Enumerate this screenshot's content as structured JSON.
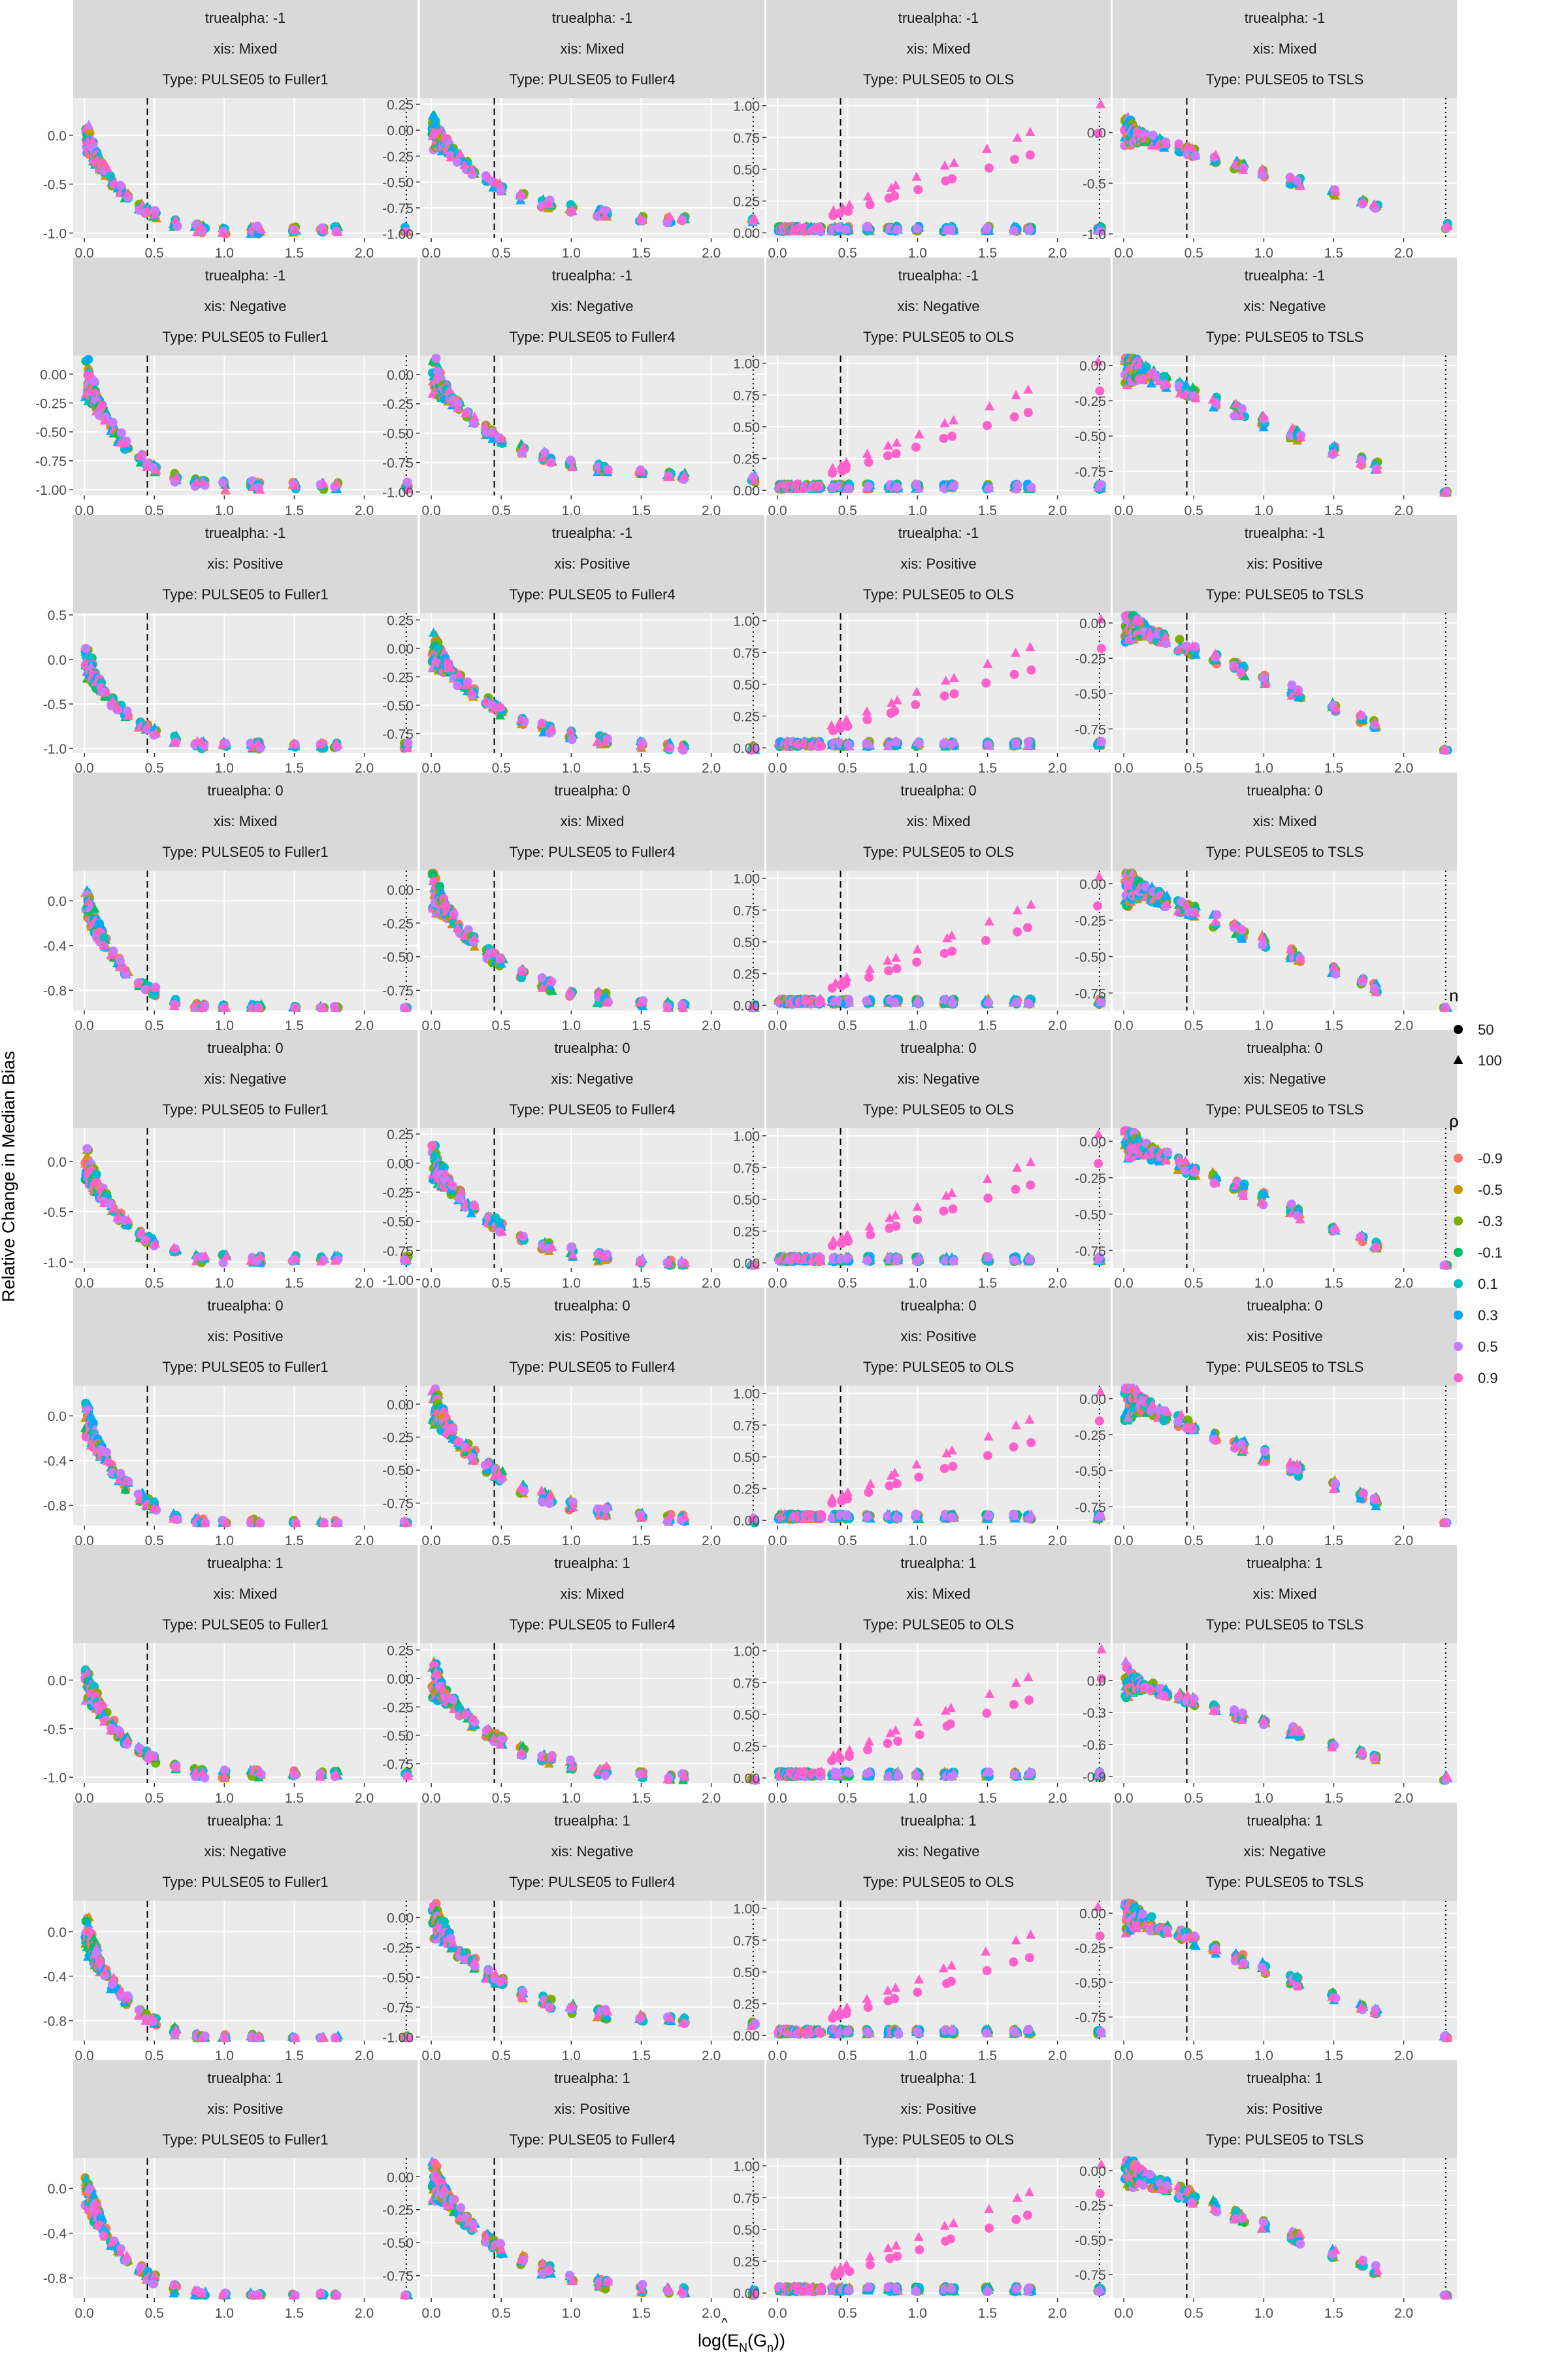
{
  "chart_data": {
    "type": "scatter",
    "layout": "facet-grid",
    "ylabel": "Relative Change in Median Bias",
    "xlabel_parts": {
      "base": "log(",
      "E": "E",
      "hat": "^",
      "sub_N": "N",
      "mid": "(G",
      "sub_n": "n",
      "end": "))"
    },
    "x_ticks": [
      0.0,
      0.5,
      1.0,
      1.5,
      2.0
    ],
    "x_tick_labels": [
      "0.0",
      "0.5",
      "1.0",
      "1.5",
      "2.0"
    ],
    "xlim": [
      -0.08,
      2.38
    ],
    "vline_dashed_x": 0.45,
    "vline_dotted_x": 2.3,
    "grid": true,
    "facet_rows": [
      {
        "truealpha": "truealpha: -1",
        "xis": "xis: Mixed"
      },
      {
        "truealpha": "truealpha: -1",
        "xis": "xis: Negative"
      },
      {
        "truealpha": "truealpha: -1",
        "xis": "xis: Positive"
      },
      {
        "truealpha": "truealpha: 0",
        "xis": "xis: Mixed"
      },
      {
        "truealpha": "truealpha: 0",
        "xis": "xis: Negative"
      },
      {
        "truealpha": "truealpha: 0",
        "xis": "xis: Positive"
      },
      {
        "truealpha": "truealpha: 1",
        "xis": "xis: Mixed"
      },
      {
        "truealpha": "truealpha: 1",
        "xis": "xis: Negative"
      },
      {
        "truealpha": "truealpha: 1",
        "xis": "xis: Positive"
      }
    ],
    "facet_cols": [
      {
        "type": "Type: PULSE05 to Fuller1",
        "kind": "fuller1"
      },
      {
        "type": "Type: PULSE05 to Fuller4",
        "kind": "fuller4"
      },
      {
        "type": "Type: PULSE05 to OLS",
        "kind": "ols"
      },
      {
        "type": "Type: PULSE05 to TSLS",
        "kind": "tsls"
      }
    ],
    "y_ticks": [
      [
        [
          0.0,
          -0.5,
          -1.0
        ],
        [
          0.25,
          0.0,
          -0.25,
          -0.5,
          -0.75,
          -1.0
        ],
        [
          1.0,
          0.75,
          0.5,
          0.25,
          0.0
        ],
        [
          0.0,
          -0.5,
          -1.0
        ]
      ],
      [
        [
          0.0,
          -0.25,
          -0.5,
          -0.75,
          -1.0
        ],
        [
          0.0,
          -0.25,
          -0.5,
          -0.75,
          -1.0
        ],
        [
          1.0,
          0.75,
          0.5,
          0.25,
          0.0
        ],
        [
          0.0,
          -0.25,
          -0.5,
          -0.75
        ]
      ],
      [
        [
          0.5,
          0.0,
          -0.5,
          -1.0
        ],
        [
          0.25,
          0.0,
          -0.25,
          -0.5,
          -0.75
        ],
        [
          1.0,
          0.75,
          0.5,
          0.25,
          0.0
        ],
        [
          0.0,
          -0.25,
          -0.5,
          -0.75
        ]
      ],
      [
        [
          0.0,
          -0.4,
          -0.8
        ],
        [
          0.0,
          -0.25,
          -0.5,
          -0.75
        ],
        [
          1.0,
          0.75,
          0.5,
          0.25,
          0.0
        ],
        [
          0.0,
          -0.25,
          -0.5,
          -0.75
        ]
      ],
      [
        [
          0.0,
          -0.5,
          -1.0
        ],
        [
          0.25,
          0.0,
          -0.25,
          -0.5,
          -0.75,
          -1.0
        ],
        [
          1.0,
          0.75,
          0.5,
          0.25,
          0.0
        ],
        [
          0.0,
          -0.25,
          -0.5,
          -0.75
        ]
      ],
      [
        [
          0.0,
          -0.4,
          -0.8
        ],
        [
          0.0,
          -0.25,
          -0.5,
          -0.75
        ],
        [
          1.0,
          0.75,
          0.5,
          0.25,
          0.0
        ],
        [
          0.0,
          -0.25,
          -0.5,
          -0.75
        ]
      ],
      [
        [
          0.0,
          -0.5,
          -1.0
        ],
        [
          0.25,
          0.0,
          -0.25,
          -0.5,
          -0.75
        ],
        [
          1.0,
          0.75,
          0.5,
          0.25,
          0.0
        ],
        [
          0.0,
          -0.3,
          -0.6,
          -0.9
        ]
      ],
      [
        [
          0.0,
          -0.4,
          -0.8
        ],
        [
          0.0,
          -0.25,
          -0.5,
          -0.75,
          -1.0
        ],
        [
          1.0,
          0.75,
          0.5,
          0.25,
          0.0
        ],
        [
          0.0,
          -0.25,
          -0.5,
          -0.75
        ]
      ],
      [
        [
          0.0,
          -0.4,
          -0.8
        ],
        [
          0.0,
          -0.25,
          -0.5,
          -0.75
        ],
        [
          1.0,
          0.75,
          0.5,
          0.25,
          0.0
        ],
        [
          0.0,
          -0.25,
          -0.5,
          -0.75
        ]
      ]
    ],
    "y_tick_labels": [
      [
        [
          "0.0",
          "-0.5",
          "-1.0"
        ],
        [
          "0.25",
          "0.00",
          "-0.25",
          "-0.50",
          "-0.75",
          "-1.00"
        ],
        [
          "1.00",
          "0.75",
          "0.50",
          "0.25",
          "0.00"
        ],
        [
          "0.0",
          "-0.5",
          "-1.0"
        ]
      ],
      [
        [
          "0.00",
          "-0.25",
          "-0.50",
          "-0.75",
          "-1.00"
        ],
        [
          "0.00",
          "-0.25",
          "-0.50",
          "-0.75",
          "-1.00"
        ],
        [
          "1.00",
          "0.75",
          "0.50",
          "0.25",
          "0.00"
        ],
        [
          "0.00",
          "-0.25",
          "-0.50",
          "-0.75"
        ]
      ],
      [
        [
          "0.5",
          "0.0",
          "-0.5",
          "-1.0"
        ],
        [
          "0.25",
          "0.00",
          "-0.25",
          "-0.50",
          "-0.75"
        ],
        [
          "1.00",
          "0.75",
          "0.50",
          "0.25",
          "0.00"
        ],
        [
          "0.00",
          "-0.25",
          "-0.50",
          "-0.75"
        ]
      ],
      [
        [
          "0.0",
          "-0.4",
          "-0.8"
        ],
        [
          "0.00",
          "-0.25",
          "-0.50",
          "-0.75"
        ],
        [
          "1.00",
          "0.75",
          "0.50",
          "0.25",
          "0.00"
        ],
        [
          "0.00",
          "-0.25",
          "-0.50",
          "-0.75"
        ]
      ],
      [
        [
          "0.0",
          "-0.5",
          "-1.0"
        ],
        [
          "0.25",
          "0.00",
          "-0.25",
          "-0.50",
          "-0.75",
          "-1.00"
        ],
        [
          "1.00",
          "0.75",
          "0.50",
          "0.25",
          "0.00"
        ],
        [
          "0.00",
          "-0.25",
          "-0.50",
          "-0.75"
        ]
      ],
      [
        [
          "0.0",
          "-0.4",
          "-0.8"
        ],
        [
          "0.00",
          "-0.25",
          "-0.50",
          "-0.75"
        ],
        [
          "1.00",
          "0.75",
          "0.50",
          "0.25",
          "0.00"
        ],
        [
          "0.00",
          "-0.25",
          "-0.50",
          "-0.75"
        ]
      ],
      [
        [
          "0.0",
          "-0.5",
          "-1.0"
        ],
        [
          "0.25",
          "0.00",
          "-0.25",
          "-0.50",
          "-0.75"
        ],
        [
          "1.00",
          "0.75",
          "0.50",
          "0.25",
          "0.00"
        ],
        [
          "0.0",
          "-0.3",
          "-0.6",
          "-0.9"
        ]
      ],
      [
        [
          "0.0",
          "-0.4",
          "-0.8"
        ],
        [
          "0.00",
          "-0.25",
          "-0.50",
          "-0.75",
          "-1.00"
        ],
        [
          "1.00",
          "0.75",
          "0.50",
          "0.25",
          "0.00"
        ],
        [
          "0.00",
          "-0.25",
          "-0.50",
          "-0.75"
        ]
      ],
      [
        [
          "0.0",
          "-0.4",
          "-0.8"
        ],
        [
          "0.00",
          "-0.25",
          "-0.50",
          "-0.75"
        ],
        [
          "1.00",
          "0.75",
          "0.50",
          "0.25",
          "0.00"
        ],
        [
          "0.00",
          "-0.25",
          "-0.50",
          "-0.75"
        ]
      ]
    ],
    "ylims": [
      [
        [
          -1.05,
          0.38
        ],
        [
          -1.04,
          0.31
        ],
        [
          -0.04,
          1.06
        ],
        [
          -1.04,
          0.34
        ]
      ],
      [
        [
          -1.05,
          0.16
        ],
        [
          -1.03,
          0.16
        ],
        [
          -0.04,
          1.06
        ],
        [
          -0.92,
          0.07
        ]
      ],
      [
        [
          -1.05,
          0.52
        ],
        [
          -0.92,
          0.31
        ],
        [
          -0.04,
          1.06
        ],
        [
          -0.92,
          0.07
        ]
      ],
      [
        [
          -0.98,
          0.27
        ],
        [
          -0.9,
          0.14
        ],
        [
          -0.04,
          1.06
        ],
        [
          -0.87,
          0.09
        ]
      ],
      [
        [
          -1.06,
          0.33
        ],
        [
          -0.9,
          0.3
        ],
        [
          -0.04,
          1.06
        ],
        [
          -0.87,
          0.09
        ]
      ],
      [
        [
          -0.98,
          0.27
        ],
        [
          -0.92,
          0.14
        ],
        [
          -0.04,
          1.06
        ],
        [
          -0.88,
          0.09
        ]
      ],
      [
        [
          -1.06,
          0.38
        ],
        [
          -0.92,
          0.31
        ],
        [
          -0.04,
          1.06
        ],
        [
          -0.96,
          0.35
        ]
      ],
      [
        [
          -0.98,
          0.28
        ],
        [
          -1.03,
          0.14
        ],
        [
          -0.04,
          1.06
        ],
        [
          -0.92,
          0.09
        ]
      ],
      [
        [
          -0.98,
          0.27
        ],
        [
          -0.92,
          0.14
        ],
        [
          -0.04,
          1.06
        ],
        [
          -0.92,
          0.09
        ]
      ]
    ],
    "x_values": [
      0.02,
      0.04,
      0.06,
      0.08,
      0.1,
      0.12,
      0.15,
      0.2,
      0.25,
      0.3,
      0.4,
      0.45,
      0.5,
      0.65,
      0.8,
      0.85,
      1.0,
      1.2,
      1.25,
      1.5,
      1.7,
      1.8,
      2.3
    ],
    "legend": {
      "n_title": "n",
      "n_levels": [
        {
          "label": "50",
          "shape": "circle"
        },
        {
          "label": "100",
          "shape": "triangle"
        }
      ],
      "rho_title": "ρ",
      "rho_levels": [
        {
          "label": "-0.9",
          "color": "#F8766D"
        },
        {
          "label": "-0.5",
          "color": "#CD9600"
        },
        {
          "label": "-0.3",
          "color": "#7CAE00"
        },
        {
          "label": "-0.1",
          "color": "#00BE67"
        },
        {
          "label": "0.1",
          "color": "#00BFC4"
        },
        {
          "label": "0.3",
          "color": "#00A9FF"
        },
        {
          "label": "0.5",
          "color": "#C77CFF"
        },
        {
          "label": "0.9",
          "color": "#FF61CC"
        }
      ]
    },
    "colors": {
      "panel_bg": "#EBEBEB",
      "strip_bg": "#D9D9D9",
      "grid_major": "#FFFFFF"
    }
  }
}
